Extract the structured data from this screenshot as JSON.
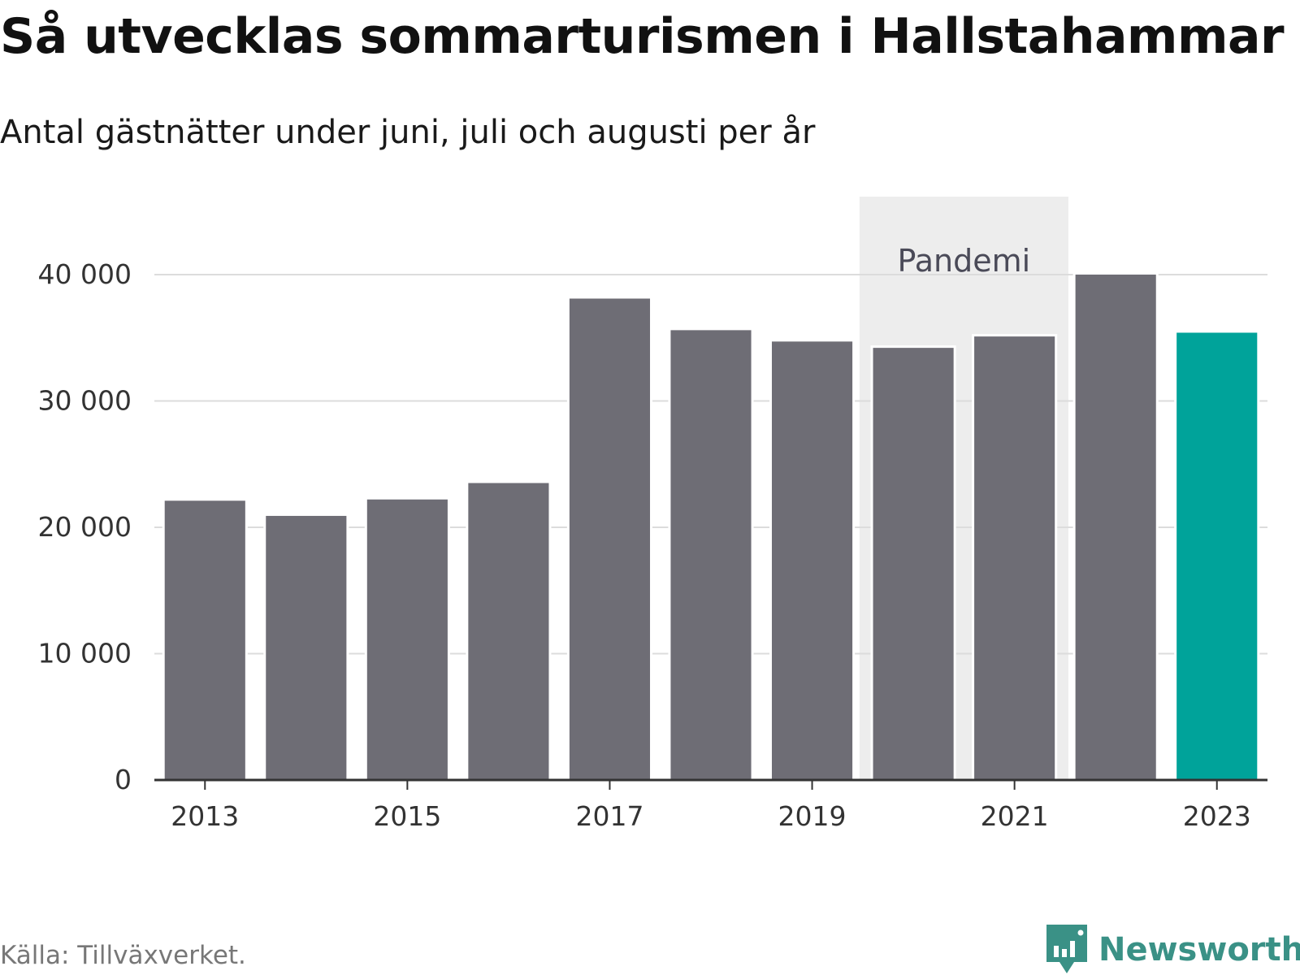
{
  "title": "Så utvecklas sommarturismen i Hallstahammar",
  "subtitle": "Antal gästnätter under juni, juli och augusti per år",
  "source": "Källa: Tillväxverket.",
  "brand": {
    "name": "Newsworthy",
    "icon": "newsworthy-logo-icon",
    "color": "#3a9186"
  },
  "colors": {
    "bar": "#6e6d75",
    "highlight": "#00a39a",
    "band": "#ededed",
    "grid": "#dcdcdc",
    "axis": "#333333"
  },
  "chart_data": {
    "type": "bar",
    "categories": [
      "2013",
      "2014",
      "2015",
      "2016",
      "2017",
      "2018",
      "2019",
      "2020",
      "2021",
      "2022",
      "2023"
    ],
    "values": [
      22200,
      21000,
      22300,
      23600,
      38200,
      35700,
      34800,
      34300,
      35200,
      40100,
      35500
    ],
    "highlight_category": "2023",
    "ylim": [
      0,
      40000
    ],
    "yticks": [
      0,
      10000,
      20000,
      30000,
      40000
    ],
    "ytick_labels": [
      "0",
      "10 000",
      "20 000",
      "30 000",
      "40 000"
    ],
    "xtick_labels": [
      "2013",
      "2015",
      "2017",
      "2019",
      "2021",
      "2023"
    ],
    "grid": true,
    "annotation": {
      "label": "Pandemi",
      "from": "2020",
      "to": "2021"
    },
    "title": "Så utvecklas sommarturismen i Hallstahammar",
    "subtitle": "Antal gästnätter under juni, juli och augusti per år",
    "xlabel": "",
    "ylabel": ""
  }
}
